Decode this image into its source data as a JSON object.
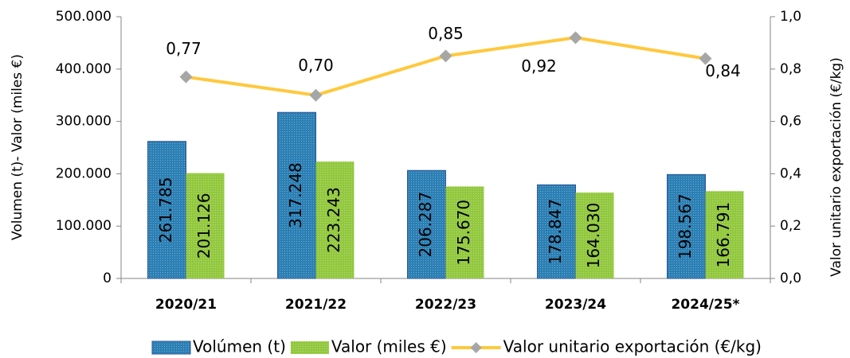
{
  "chart_data": {
    "type": "bar",
    "categories": [
      "2020/21",
      "2021/22",
      "2022/23",
      "2023/24",
      "2024/25*"
    ],
    "ylabel": "Volumen (t)- Valor (miles €)",
    "y2label": "Valor unitario exportación (€/kg)",
    "ylim": [
      0,
      500000
    ],
    "yticks": [
      0,
      {
        "value": 100000,
        "label": "100.000"
      },
      {
        "value": 200000,
        "label": "200.000"
      },
      {
        "value": 300000,
        "label": "300.000"
      },
      {
        "value": 400000,
        "label": "400.000"
      },
      {
        "value": 500000,
        "label": "500.000"
      }
    ],
    "y2lim": [
      0,
      1
    ],
    "y2ticks": [
      {
        "value": 0,
        "label": "0,0"
      },
      {
        "value": 0.2,
        "label": "0,2"
      },
      {
        "value": 0.4,
        "label": "0,4"
      },
      {
        "value": 0.6,
        "label": "0,6"
      },
      {
        "value": 0.8,
        "label": "0,8"
      },
      {
        "value": 1,
        "label": "1,0"
      }
    ],
    "legend": "bottom",
    "series": [
      {
        "name": "Volúmen (t)",
        "type": "bar",
        "color": "#2b7fb4",
        "values": [
          261785,
          317248,
          206287,
          178847,
          198567
        ],
        "value_labels": [
          "261.785",
          "317.248",
          "206.287",
          "178.847",
          "198.567"
        ]
      },
      {
        "name": "Valor (miles €)",
        "type": "bar",
        "color": "#92c83e",
        "values": [
          201126,
          223243,
          175670,
          164030,
          166791
        ],
        "value_labels": [
          "201.126",
          "223.243",
          "175.670",
          "164.030",
          "166.791"
        ]
      },
      {
        "name": "Valor unitario exportación (€/kg)",
        "type": "line",
        "axis": "y2",
        "color": "#ffc83d",
        "values": [
          0.77,
          0.7,
          0.85,
          0.92,
          0.84
        ],
        "value_labels": [
          "0,77",
          "0,70",
          "0,85",
          "0,92",
          "0,84"
        ]
      }
    ]
  }
}
